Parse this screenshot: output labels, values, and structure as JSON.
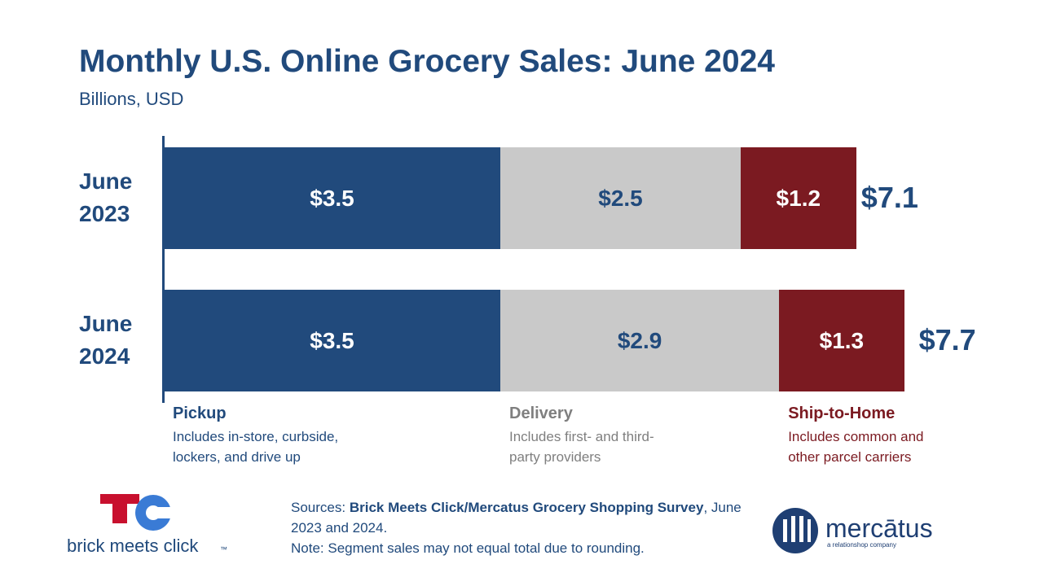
{
  "chart_data": {
    "type": "bar",
    "orientation": "horizontal",
    "stacked": true,
    "title": "Monthly U.S. Online Grocery Sales: June 2024",
    "subtitle": "Billions, USD",
    "categories": [
      "June 2023",
      "June 2024"
    ],
    "series": [
      {
        "name": "Pickup",
        "description": "Includes in-store, curbside, lockers, and drive up",
        "color": "#214a7c",
        "label_color": "#ffffff",
        "legend_color": "#214a7c",
        "values": [
          3.5,
          3.5
        ],
        "value_labels": [
          "$3.5",
          "$3.5"
        ]
      },
      {
        "name": "Delivery",
        "description": "Includes first- and third-party providers",
        "color": "#c9c9c9",
        "label_color": "#214a7c",
        "legend_color": "#7f7f7f",
        "values": [
          2.5,
          2.9
        ],
        "value_labels": [
          "$2.5",
          "$2.9"
        ]
      },
      {
        "name": "Ship-to-Home",
        "description": "Includes common and other parcel carriers",
        "color": "#7b1a21",
        "label_color": "#ffffff",
        "legend_color": "#7b1a21",
        "values": [
          1.2,
          1.3
        ],
        "value_labels": [
          "$1.2",
          "$1.3"
        ]
      }
    ],
    "totals": [
      7.1,
      7.7
    ],
    "total_labels": [
      "$7.1",
      "$7.7"
    ]
  },
  "footer": {
    "sources_label": "Sources:",
    "sources_bold": "Brick Meets Click/Mercatus Grocery Shopping Survey",
    "sources_rest": ", June 2023 and 2024.",
    "note": "Note: Segment sales may not equal total due to rounding."
  },
  "logos": {
    "left": "brick meets click",
    "left_mark": "™",
    "right": "mercātus",
    "right_tagline": "a relationshop company"
  }
}
